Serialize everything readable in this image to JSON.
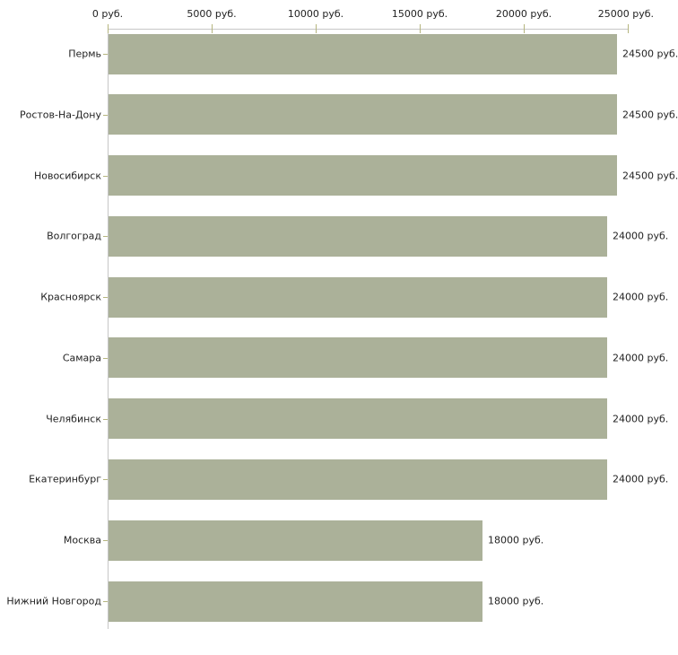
{
  "chart_data": {
    "type": "bar",
    "orientation": "horizontal",
    "unit": "руб.",
    "categories": [
      "Пермь",
      "Ростов-На-Дону",
      "Новосибирск",
      "Волгоград",
      "Красноярск",
      "Самара",
      "Челябинск",
      "Екатеринбург",
      "Москва",
      "Нижний Новгород"
    ],
    "values": [
      24500,
      24500,
      24500,
      24000,
      24000,
      24000,
      24000,
      24000,
      18000,
      18000
    ],
    "value_labels": [
      "24500 руб.",
      "24500 руб.",
      "24500 руб.",
      "24000 руб.",
      "24000 руб.",
      "24000 руб.",
      "24000 руб.",
      "24000 руб.",
      "18000 руб.",
      "18000 руб."
    ],
    "x_axis": {
      "position": "top",
      "min": 0,
      "max": 25000,
      "ticks": [
        0,
        5000,
        10000,
        15000,
        20000,
        25000
      ],
      "tick_labels": [
        "0 руб.",
        "5000 руб.",
        "10000 руб.",
        "15000 руб.",
        "20000 руб.",
        "25000 руб."
      ]
    },
    "grid": "off",
    "legend": "none",
    "colors": {
      "bar": "#abb199",
      "axis_line": "#c6c6c6",
      "tick": "#b5b57e",
      "text": "#222222",
      "background": "#ffffff"
    }
  }
}
